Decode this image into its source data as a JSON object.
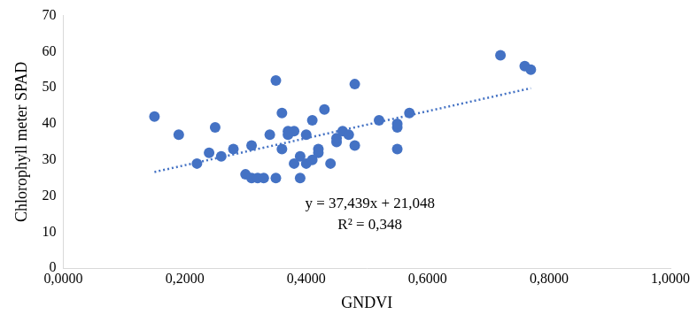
{
  "chart_data": {
    "type": "scatter",
    "x_label": "GNDVI",
    "y_label": "Chlorophyll meter SPAD",
    "annotations": [
      "y = 37,439x + 21,048",
      "R² = 0,348"
    ],
    "xlim": [
      0,
      1
    ],
    "xticks": [
      {
        "value": 0,
        "label": "0,0000"
      },
      {
        "value": 0.2,
        "label": "0,2000"
      },
      {
        "value": 0.4,
        "label": "0,4000"
      },
      {
        "value": 0.6,
        "label": "0,6000"
      },
      {
        "value": 0.8,
        "label": "0,8000"
      },
      {
        "value": 1,
        "label": "1,0000"
      }
    ],
    "ylim": [
      0,
      70
    ],
    "yticks": [
      0,
      10,
      20,
      30,
      40,
      50,
      60,
      70
    ],
    "grid": false,
    "series": [
      {
        "type": "scatter",
        "color": "#4472c4",
        "marker": "circle",
        "x": [
          0.15,
          0.19,
          0.22,
          0.24,
          0.25,
          0.26,
          0.28,
          0.3,
          0.31,
          0.31,
          0.32,
          0.33,
          0.34,
          0.35,
          0.35,
          0.36,
          0.36,
          0.37,
          0.38,
          0.38,
          0.39,
          0.39,
          0.4,
          0.41,
          0.41,
          0.42,
          0.42,
          0.43,
          0.44,
          0.45,
          0.45,
          0.46,
          0.47,
          0.48,
          0.48,
          0.52,
          0.55,
          0.55,
          0.55,
          0.57,
          0.72,
          0.76,
          0.77,
          0.37,
          0.4
        ],
        "values": [
          42,
          37,
          29,
          32,
          39,
          31,
          33,
          26,
          25,
          34,
          25,
          25,
          37,
          52,
          25,
          43,
          33,
          37,
          29,
          38,
          31,
          25,
          29,
          30,
          41,
          33,
          32,
          44,
          29,
          35,
          36,
          38,
          37,
          34,
          51,
          41,
          39,
          40,
          33,
          43,
          59,
          56,
          55,
          38,
          37
        ]
      },
      {
        "type": "line",
        "color": "#4472c4",
        "line_style": "dotted",
        "x": [
          0.15,
          0.77
        ],
        "values": [
          26.66,
          49.87
        ]
      }
    ]
  }
}
